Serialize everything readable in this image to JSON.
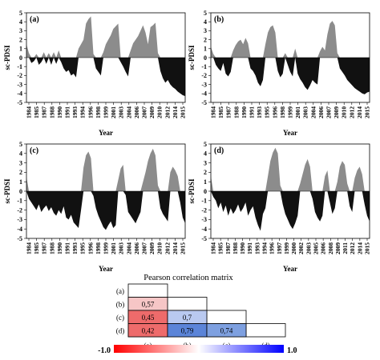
{
  "chart_data": [
    {
      "type": "area",
      "panel_label": "(a)",
      "ylabel": "sc-PDSI",
      "xlabel": "Year",
      "ylim": [
        -5,
        5
      ],
      "yticks": [
        -5,
        -4,
        -3,
        -2,
        -1,
        0,
        1,
        2,
        3,
        4,
        5
      ],
      "xlim": [
        1984,
        2016
      ],
      "xticks": [
        "1984",
        "1985",
        "1987",
        "1988",
        "1990",
        "1991",
        "1993",
        "1994",
        "1996",
        "1998",
        "1999",
        "2001",
        "2003",
        "2004",
        "2006",
        "2007",
        "2009",
        "2010",
        "2012",
        "2014",
        "2015"
      ],
      "positive_color": "#8c8c8c",
      "negative_color": "#111111",
      "x": [
        1984.0,
        1984.5,
        1985.0,
        1985.5,
        1986.0,
        1986.5,
        1987.0,
        1987.5,
        1988.0,
        1988.5,
        1989.0,
        1989.5,
        1990.0,
        1990.5,
        1991.0,
        1991.5,
        1992.0,
        1992.5,
        1993.0,
        1993.5,
        1994.0,
        1994.5,
        1995.0,
        1995.5,
        1996.0,
        1996.5,
        1997.0,
        1997.5,
        1998.0,
        1998.5,
        1999.0,
        1999.5,
        2000.0,
        2000.5,
        2001.0,
        2001.5,
        2002.0,
        2002.5,
        2003.0,
        2003.5,
        2004.0,
        2004.5,
        2005.0,
        2005.5,
        2006.0,
        2006.5,
        2007.0,
        2007.5,
        2008.0,
        2008.5,
        2009.0,
        2009.5,
        2010.0,
        2010.5,
        2011.0,
        2011.5,
        2012.0,
        2012.5,
        2013.0,
        2013.5,
        2014.0,
        2014.5,
        2015.0,
        2015.5,
        2016.0
      ],
      "values": [
        1.5,
        0.5,
        -0.6,
        -0.4,
        0.4,
        -0.8,
        -0.5,
        0.6,
        -0.7,
        0.5,
        -0.8,
        0.6,
        -0.7,
        0.8,
        -0.5,
        -1.2,
        -1.6,
        -1.4,
        -2.0,
        -1.8,
        -2.2,
        1.0,
        1.5,
        2.0,
        3.8,
        4.3,
        4.6,
        0.4,
        -1.2,
        -1.6,
        -2.0,
        0.6,
        1.5,
        2.0,
        2.5,
        3.2,
        3.5,
        3.8,
        -0.5,
        -1.0,
        -1.6,
        -2.1,
        0.8,
        1.6,
        2.0,
        2.4,
        3.0,
        3.6,
        2.8,
        1.5,
        3.4,
        3.6,
        3.9,
        0.5,
        -1.5,
        -2.3,
        -2.8,
        -2.5,
        -3.0,
        -3.3,
        -3.5,
        -3.8,
        -4.0,
        -4.2,
        -4.3
      ]
    },
    {
      "type": "area",
      "panel_label": "(b)",
      "ylabel": "sc-PDSI",
      "xlabel": "Year",
      "ylim": [
        -5,
        5
      ],
      "yticks": [
        -5,
        -4,
        -3,
        -2,
        -1,
        0,
        1,
        2,
        3,
        4,
        5
      ],
      "xlim": [
        1984,
        2016
      ],
      "xticks": [
        "1984",
        "1985",
        "1987",
        "1988",
        "1990",
        "1991",
        "1993",
        "1995",
        "1996",
        "1998",
        "1999",
        "2001",
        "2003",
        "2004",
        "2006",
        "2007",
        "2009",
        "2010",
        "2012",
        "2014",
        "2015"
      ],
      "positive_color": "#8c8c8c",
      "negative_color": "#111111",
      "x": [
        1984.0,
        1984.5,
        1985.0,
        1985.5,
        1986.0,
        1986.5,
        1987.0,
        1987.5,
        1988.0,
        1988.5,
        1989.0,
        1989.5,
        1990.0,
        1990.5,
        1991.0,
        1991.5,
        1992.0,
        1992.5,
        1993.0,
        1993.5,
        1994.0,
        1994.5,
        1995.0,
        1995.5,
        1996.0,
        1996.5,
        1997.0,
        1997.5,
        1998.0,
        1998.5,
        1999.0,
        1999.5,
        2000.0,
        2000.5,
        2001.0,
        2001.5,
        2002.0,
        2002.5,
        2003.0,
        2003.5,
        2004.0,
        2004.5,
        2005.0,
        2005.5,
        2006.0,
        2006.5,
        2007.0,
        2007.5,
        2008.0,
        2008.5,
        2009.0,
        2009.5,
        2010.0,
        2010.5,
        2011.0,
        2011.5,
        2012.0,
        2012.5,
        2013.0,
        2013.5,
        2014.0,
        2014.5,
        2015.0,
        2015.5,
        2016.0
      ],
      "values": [
        1.2,
        0.4,
        -0.8,
        -1.2,
        -1.5,
        -0.6,
        -1.8,
        -2.1,
        -1.6,
        0.8,
        1.4,
        1.8,
        2.0,
        1.5,
        2.2,
        1.6,
        -1.2,
        -1.5,
        -2.0,
        -2.8,
        -3.2,
        -2.5,
        1.5,
        2.8,
        3.4,
        3.6,
        2.8,
        -1.5,
        -2.2,
        -1.8,
        0.5,
        -0.8,
        -1.6,
        -2.1,
        1.0,
        -1.8,
        -2.4,
        -2.8,
        -3.3,
        -3.6,
        -3.1,
        -2.5,
        -2.8,
        -3.0,
        0.7,
        1.2,
        0.8,
        2.6,
        3.8,
        4.1,
        3.6,
        0.5,
        -1.2,
        -1.6,
        -2.0,
        -2.5,
        -2.8,
        -3.1,
        -3.4,
        -3.6,
        -3.8,
        -4.0,
        -4.1,
        -3.9,
        -3.8
      ]
    },
    {
      "type": "area",
      "panel_label": "(c)",
      "ylabel": "sc-PDSI",
      "xlabel": "Year",
      "ylim": [
        -5,
        5
      ],
      "yticks": [
        -5,
        -4,
        -3,
        -2,
        -1,
        0,
        1,
        2,
        3,
        4,
        5
      ],
      "xlim": [
        1984,
        2016
      ],
      "xticks": [
        "1984",
        "1985",
        "1987",
        "1988",
        "1990",
        "1991",
        "1993",
        "1995",
        "1996",
        "1998",
        "1999",
        "2001",
        "2003",
        "2004",
        "2006",
        "2007",
        "2009",
        "2010",
        "2012",
        "2014",
        "2015"
      ],
      "positive_color": "#8c8c8c",
      "negative_color": "#111111",
      "x": [
        1984.0,
        1984.5,
        1985.0,
        1985.5,
        1986.0,
        1986.5,
        1987.0,
        1987.5,
        1988.0,
        1988.5,
        1989.0,
        1989.5,
        1990.0,
        1990.5,
        1991.0,
        1991.5,
        1992.0,
        1992.5,
        1993.0,
        1993.5,
        1994.0,
        1994.5,
        1995.0,
        1995.5,
        1996.0,
        1996.5,
        1997.0,
        1997.5,
        1998.0,
        1998.5,
        1999.0,
        1999.5,
        2000.0,
        2000.5,
        2001.0,
        2001.5,
        2002.0,
        2002.5,
        2003.0,
        2003.5,
        2004.0,
        2004.5,
        2005.0,
        2005.5,
        2006.0,
        2006.5,
        2007.0,
        2007.5,
        2008.0,
        2008.5,
        2009.0,
        2009.5,
        2010.0,
        2010.5,
        2011.0,
        2011.5,
        2012.0,
        2012.5,
        2013.0,
        2013.5,
        2014.0,
        2014.5,
        2015.0,
        2015.5,
        2016.0
      ],
      "values": [
        1.5,
        -0.8,
        -1.2,
        -1.6,
        -2.0,
        -1.4,
        -2.2,
        -1.8,
        -1.5,
        -2.1,
        -1.7,
        -2.3,
        -2.6,
        -2.0,
        -2.4,
        -1.6,
        -2.8,
        -3.0,
        -2.5,
        -3.3,
        -3.6,
        -3.9,
        -2.0,
        2.5,
        3.8,
        4.2,
        3.5,
        -0.5,
        -1.8,
        -2.6,
        -3.2,
        -3.8,
        -4.1,
        -3.6,
        -3.2,
        -3.9,
        -3.6,
        1.2,
        2.4,
        2.8,
        -0.4,
        -2.2,
        -2.6,
        -3.0,
        -3.4,
        -2.8,
        -2.2,
        1.0,
        2.0,
        3.2,
        4.0,
        4.5,
        3.8,
        0.6,
        -1.8,
        -2.4,
        -2.8,
        -3.2,
        2.0,
        2.6,
        2.2,
        1.6,
        -1.2,
        -2.8,
        -3.4
      ]
    },
    {
      "type": "area",
      "panel_label": "(d)",
      "ylabel": "sc-PDSI",
      "xlabel": "Year",
      "ylim": [
        -5,
        5
      ],
      "yticks": [
        -5,
        -4,
        -3,
        -2,
        -1,
        0,
        1,
        2,
        3,
        4,
        5
      ],
      "xlim": [
        1984,
        2016
      ],
      "xticks": [
        "1984",
        "1985",
        "1987",
        "1988",
        "1990",
        "1991",
        "1993",
        "1994",
        "1996",
        "1997",
        "1999",
        "2000",
        "2002",
        "2003",
        "2005",
        "2006",
        "2008",
        "2009",
        "2011",
        "2012",
        "2014",
        "2015"
      ],
      "positive_color": "#8c8c8c",
      "negative_color": "#111111",
      "x": [
        1984.0,
        1984.5,
        1985.0,
        1985.5,
        1986.0,
        1986.5,
        1987.0,
        1987.5,
        1988.0,
        1988.5,
        1989.0,
        1989.5,
        1990.0,
        1990.5,
        1991.0,
        1991.5,
        1992.0,
        1992.5,
        1993.0,
        1993.5,
        1994.0,
        1994.5,
        1995.0,
        1995.5,
        1996.0,
        1996.5,
        1997.0,
        1997.5,
        1998.0,
        1998.5,
        1999.0,
        1999.5,
        2000.0,
        2000.5,
        2001.0,
        2001.5,
        2002.0,
        2002.5,
        2003.0,
        2003.5,
        2004.0,
        2004.5,
        2005.0,
        2005.5,
        2006.0,
        2006.5,
        2007.0,
        2007.5,
        2008.0,
        2008.5,
        2009.0,
        2009.5,
        2010.0,
        2010.5,
        2011.0,
        2011.5,
        2012.0,
        2012.5,
        2013.0,
        2013.5,
        2014.0,
        2014.5,
        2015.0,
        2015.5,
        2016.0
      ],
      "values": [
        1.6,
        -0.6,
        -1.0,
        -1.8,
        -1.2,
        -2.2,
        -1.5,
        -2.6,
        -1.8,
        -2.4,
        -2.0,
        -1.4,
        -2.2,
        -1.8,
        -1.2,
        -2.6,
        -2.0,
        -1.6,
        -2.8,
        -3.6,
        -4.2,
        -2.4,
        -1.8,
        1.6,
        3.2,
        4.1,
        4.6,
        4.0,
        0.6,
        -1.4,
        -2.4,
        -3.0,
        -3.6,
        -4.0,
        -3.4,
        -2.6,
        0.8,
        1.8,
        2.8,
        3.4,
        2.6,
        -0.8,
        -2.2,
        -2.8,
        -3.2,
        -2.6,
        1.6,
        2.2,
        -1.2,
        -2.4,
        -1.8,
        1.0,
        2.6,
        3.2,
        2.8,
        0.8,
        -1.6,
        -2.2,
        1.4,
        2.2,
        2.6,
        1.8,
        -1.4,
        -2.6,
        -3.2
      ]
    },
    {
      "type": "heatmap",
      "title": "Pearson correlation matrix",
      "row_labels": [
        "(a)",
        "(b)",
        "(c)",
        "(d)"
      ],
      "col_labels": [
        "(a)",
        "(b)",
        "(c)",
        "(d)"
      ],
      "cells": [
        {
          "row": 1,
          "col": 0,
          "value": 0.57,
          "label": "0,57"
        },
        {
          "row": 2,
          "col": 0,
          "value": 0.45,
          "label": "0,45"
        },
        {
          "row": 2,
          "col": 1,
          "value": 0.7,
          "label": "0,7"
        },
        {
          "row": 3,
          "col": 0,
          "value": 0.42,
          "label": "0,42"
        },
        {
          "row": 3,
          "col": 1,
          "value": 0.79,
          "label": "0,79"
        },
        {
          "row": 3,
          "col": 2,
          "value": 0.74,
          "label": "0,74"
        }
      ],
      "colorbar": {
        "min": -1.0,
        "max": 1.0,
        "min_label": "-1.0",
        "max_label": "1.0",
        "low_color": "#ff0000",
        "mid_color": "#ffffff",
        "high_color": "#0000ff"
      }
    }
  ]
}
